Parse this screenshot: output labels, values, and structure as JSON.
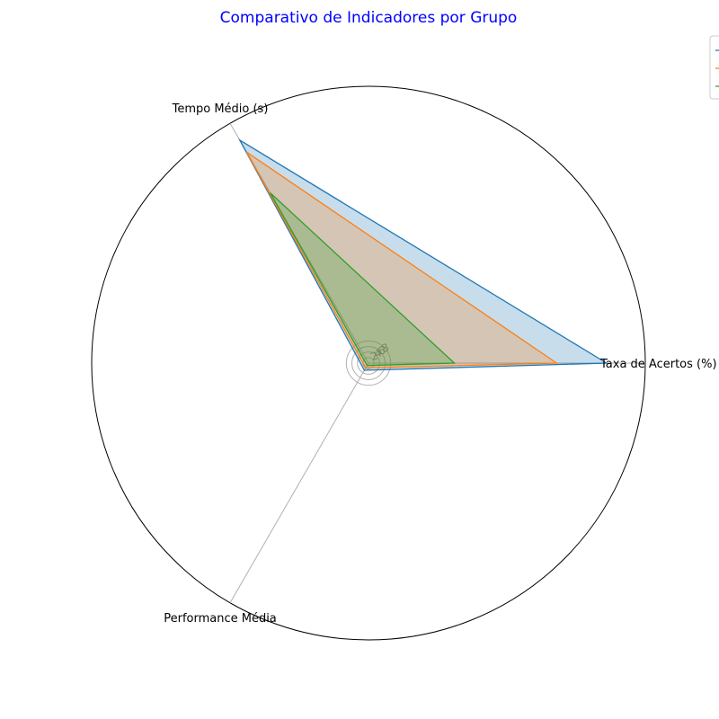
{
  "colors": {
    "title": "#0000ff",
    "grid": "#b0b0b0",
    "frame": "#000000"
  },
  "chart_data": {
    "type": "radar",
    "title": "Comparativo de Indicadores por Grupo",
    "axes": [
      "Taxa de Acertos (%)",
      "Tempo Médio (s)",
      "Performance Média"
    ],
    "radial_ticks": [
      2,
      4,
      6,
      8
    ],
    "rmax": 100,
    "grid": true,
    "legend_placement": "top-right",
    "series": [
      {
        "color": "#1f77b4",
        "values": [
          86,
          93,
          3
        ],
        "fill_opacity": 0.25
      },
      {
        "color": "#ff7f0e",
        "values": [
          68,
          88,
          2
        ],
        "fill_opacity": 0.25
      },
      {
        "color": "#2ca02c",
        "values": [
          31,
          71,
          1
        ],
        "fill_opacity": 0.25
      }
    ]
  }
}
